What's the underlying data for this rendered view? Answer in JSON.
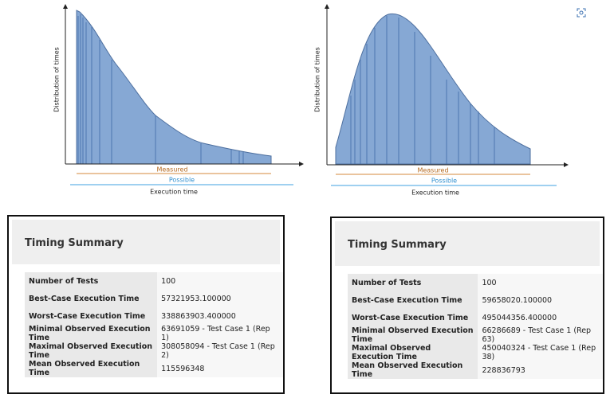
{
  "charts": [
    {
      "y_label": "Distribution of times",
      "measured_label": "Measured",
      "possible_label": "Possible",
      "x_label": "Execution time"
    },
    {
      "y_label": "Distribution of times",
      "measured_label": "Measured",
      "possible_label": "Possible",
      "x_label": "Execution time"
    }
  ],
  "panels": [
    {
      "title": "Timing Summary",
      "rows": [
        [
          "Number of Tests",
          "100"
        ],
        [
          "Best-Case Execution Time",
          "57321953.100000"
        ],
        [
          "Worst-Case Execution Time",
          "338863903.400000"
        ],
        [
          "Minimal Observed Execution Time",
          "63691059 - Test Case 1 (Rep 1)"
        ],
        [
          "Maximal Observed Execution Time",
          "308058094 - Test Case 1 (Rep 2)"
        ],
        [
          "Mean Observed Execution Time",
          "115596348"
        ]
      ]
    },
    {
      "title": "Timing Summary",
      "rows": [
        [
          "Number of Tests",
          "100"
        ],
        [
          "Best-Case Execution Time",
          "59658020.100000"
        ],
        [
          "Worst-Case Execution Time",
          "495044356.400000"
        ],
        [
          "Minimal Observed Execution Time",
          "66286689 - Test Case 1 (Rep 63)"
        ],
        [
          "Maximal Observed Execution Time",
          "450040324 - Test Case 1 (Rep 38)"
        ],
        [
          "Mean Observed Execution Time",
          "228836793"
        ]
      ]
    }
  ]
}
